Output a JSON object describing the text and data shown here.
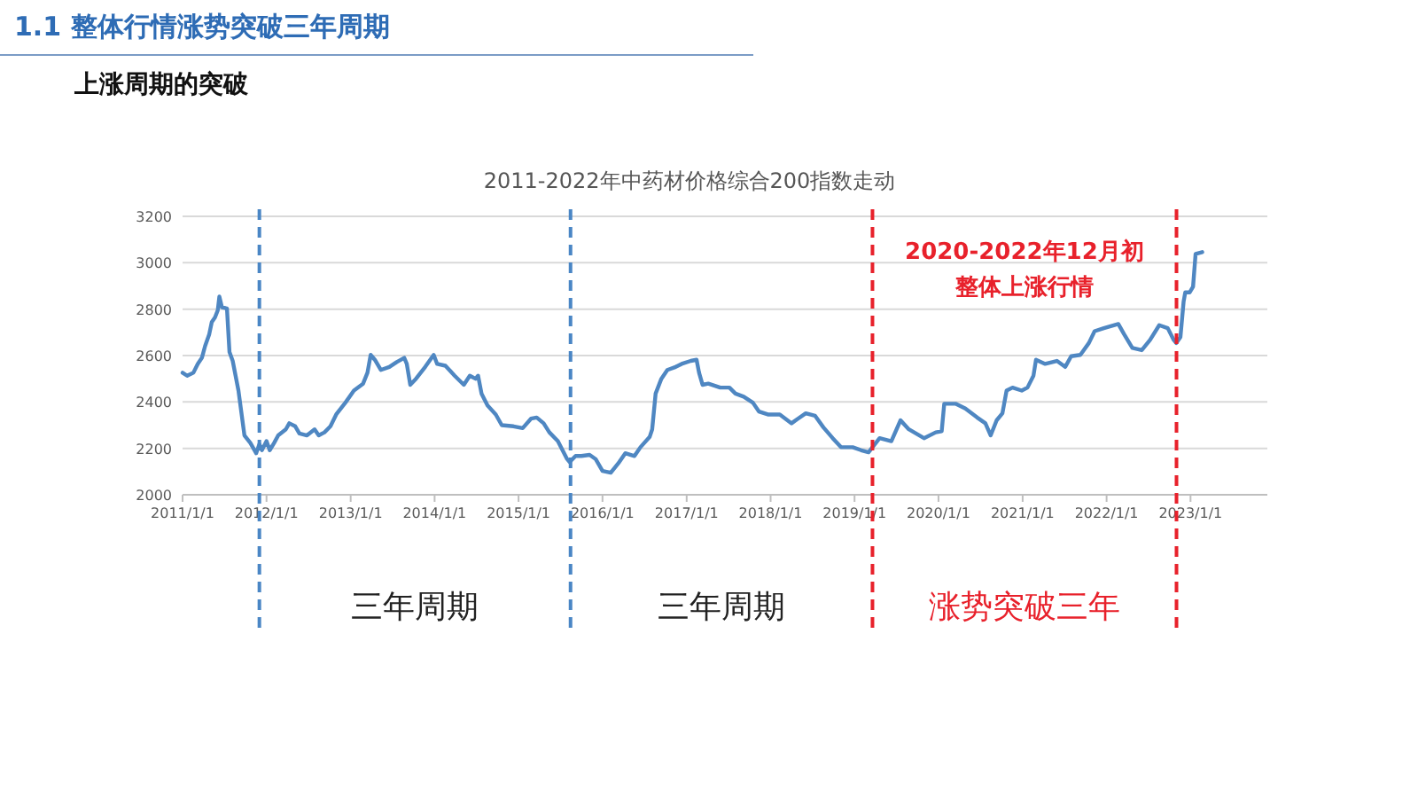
{
  "chart_data": {
    "type": "line",
    "title": "2011-2022年中药材价格综合200指数走动",
    "subtitle": "上涨周期的突破",
    "x": [
      "2011-01-01",
      "2011-01-21",
      "2011-02-17",
      "2011-03-08",
      "2011-03-26",
      "2011-04-09",
      "2011-04-27",
      "2011-05-08",
      "2011-05-22",
      "2011-06-03",
      "2011-06-10",
      "2011-06-21",
      "2011-07-13",
      "2011-07-24",
      "2011-08-07",
      "2011-09-01",
      "2011-09-27",
      "2011-10-23",
      "2011-11-17",
      "2011-12-01",
      "2011-12-12",
      "2012-01-01",
      "2012-01-15",
      "2012-02-03",
      "2012-02-21",
      "2012-03-25",
      "2012-04-09",
      "2012-05-05",
      "2012-05-23",
      "2012-06-25",
      "2012-07-28",
      "2012-08-15",
      "2012-09-09",
      "2012-10-05",
      "2012-10-30",
      "2012-12-09",
      "2013-01-15",
      "2013-02-24",
      "2013-03-15",
      "2013-03-29",
      "2013-04-16",
      "2013-05-12",
      "2013-06-18",
      "2013-07-20",
      "2013-08-22",
      "2013-09-02",
      "2013-09-17",
      "2013-10-12",
      "2013-11-21",
      "2013-12-28",
      "2014-01-12",
      "2014-02-17",
      "2014-03-29",
      "2014-05-08",
      "2014-06-03",
      "2014-06-28",
      "2014-07-09",
      "2014-07-24",
      "2014-08-19",
      "2014-09-24",
      "2014-10-20",
      "2014-12-10",
      "2015-01-19",
      "2015-02-24",
      "2015-03-21",
      "2015-04-20",
      "2015-05-15",
      "2015-06-21",
      "2015-07-31",
      "2015-08-11",
      "2015-09-06",
      "2015-10-01",
      "2015-11-06",
      "2015-12-02",
      "2016-01-01",
      "2016-02-06",
      "2016-03-14",
      "2016-04-09",
      "2016-05-19",
      "2016-06-14",
      "2016-07-24",
      "2016-08-04",
      "2016-08-19",
      "2016-09-13",
      "2016-10-09",
      "2016-11-14",
      "2016-12-10",
      "2017-01-19",
      "2017-02-13",
      "2017-02-24",
      "2017-03-11",
      "2017-04-05",
      "2017-05-27",
      "2017-07-06",
      "2017-08-01",
      "2017-09-06",
      "2017-10-16",
      "2017-11-11",
      "2017-12-20",
      "2018-02-10",
      "2018-04-02",
      "2018-04-27",
      "2018-06-03",
      "2018-07-13",
      "2018-08-19",
      "2018-09-28",
      "2018-11-03",
      "2018-12-24",
      "2019-01-30",
      "2019-03-03",
      "2019-04-20",
      "2019-06-10",
      "2019-07-20",
      "2019-08-25",
      "2019-10-30",
      "2019-12-20",
      "2020-01-15",
      "2020-01-26",
      "2020-03-17",
      "2020-04-27",
      "2020-06-17",
      "2020-07-23",
      "2020-08-15",
      "2020-09-10",
      "2020-10-05",
      "2020-10-23",
      "2020-11-18",
      "2020-12-28",
      "2021-01-22",
      "2021-02-17",
      "2021-02-28",
      "2021-04-09",
      "2021-05-30",
      "2021-07-05",
      "2021-07-31",
      "2021-09-09",
      "2021-10-16",
      "2021-11-10",
      "2021-12-20",
      "2022-02-21",
      "2022-03-18",
      "2022-04-23",
      "2022-06-03",
      "2022-07-09",
      "2022-08-18",
      "2022-09-24",
      "2022-10-20",
      "2022-10-31",
      "2022-11-18",
      "2022-12-02",
      "2022-12-09",
      "2022-12-28",
      "2023-01-12",
      "2023-01-23",
      "2023-02-21"
    ],
    "series": [
      {
        "color": "#4f87c2",
        "values": [
          2526,
          2513,
          2526,
          2564,
          2590,
          2641,
          2692,
          2744,
          2764,
          2795,
          2854,
          2808,
          2803,
          2615,
          2577,
          2449,
          2256,
          2223,
          2179,
          2218,
          2192,
          2231,
          2192,
          2223,
          2256,
          2282,
          2308,
          2295,
          2264,
          2256,
          2282,
          2256,
          2269,
          2295,
          2346,
          2397,
          2449,
          2479,
          2526,
          2603,
          2582,
          2538,
          2551,
          2572,
          2590,
          2564,
          2474,
          2500,
          2551,
          2603,
          2564,
          2556,
          2513,
          2474,
          2513,
          2500,
          2513,
          2436,
          2385,
          2346,
          2300,
          2295,
          2287,
          2328,
          2333,
          2308,
          2269,
          2231,
          2154,
          2141,
          2167,
          2167,
          2172,
          2154,
          2103,
          2095,
          2141,
          2179,
          2167,
          2205,
          2249,
          2282,
          2436,
          2500,
          2538,
          2551,
          2564,
          2577,
          2582,
          2526,
          2474,
          2479,
          2462,
          2462,
          2436,
          2423,
          2397,
          2359,
          2346,
          2346,
          2308,
          2326,
          2351,
          2341,
          2290,
          2244,
          2205,
          2205,
          2192,
          2183,
          2244,
          2231,
          2321,
          2282,
          2244,
          2269,
          2274,
          2392,
          2392,
          2372,
          2333,
          2308,
          2256,
          2321,
          2351,
          2449,
          2462,
          2449,
          2462,
          2513,
          2582,
          2564,
          2577,
          2551,
          2597,
          2603,
          2654,
          2705,
          2718,
          2736,
          2692,
          2633,
          2623,
          2667,
          2731,
          2718,
          2667,
          2654,
          2679,
          2833,
          2872,
          2872,
          2897,
          3038,
          3046
        ]
      }
    ],
    "xlim": [
      "2011-01-01",
      "2023-12-01"
    ],
    "xticks": [
      {
        "value": "2011-01-01",
        "label": "2011/1/1"
      },
      {
        "value": "2012-01-01",
        "label": "2012/1/1"
      },
      {
        "value": "2013-01-01",
        "label": "2013/1/1"
      },
      {
        "value": "2014-01-01",
        "label": "2014/1/1"
      },
      {
        "value": "2015-01-01",
        "label": "2015/1/1"
      },
      {
        "value": "2016-01-01",
        "label": "2016/1/1"
      },
      {
        "value": "2017-01-01",
        "label": "2017/1/1"
      },
      {
        "value": "2018-01-01",
        "label": "2018/1/1"
      },
      {
        "value": "2019-01-01",
        "label": "2019/1/1"
      },
      {
        "value": "2020-01-01",
        "label": "2020/1/1"
      },
      {
        "value": "2021-01-01",
        "label": "2021/1/1"
      },
      {
        "value": "2022-01-01",
        "label": "2022/1/1"
      },
      {
        "value": "2023-01-01",
        "label": "2023/1/1"
      }
    ],
    "ylim": [
      2000,
      3200
    ],
    "yticks": [
      2000,
      2200,
      2400,
      2600,
      2800,
      3000,
      3200
    ],
    "grid": "y",
    "ref_lines": [
      {
        "axis": "x",
        "value": "2011-12-01",
        "color": "#4a86c5",
        "line_style": "dashed"
      },
      {
        "axis": "x",
        "value": "2015-08-15",
        "color": "#4a86c5",
        "line_style": "dashed"
      },
      {
        "axis": "x",
        "value": "2019-03-20",
        "color": "#e8212b",
        "line_style": "dashed"
      },
      {
        "axis": "x",
        "value": "2022-11-01",
        "color": "#e8212b",
        "line_style": "dashed"
      }
    ],
    "annotations": [
      "1.1 整体行情涨势突破三年周期",
      "2020-2022年12月初",
      "整体上涨行情",
      "三年周期",
      "三年周期",
      "涨势突破三年"
    ]
  }
}
